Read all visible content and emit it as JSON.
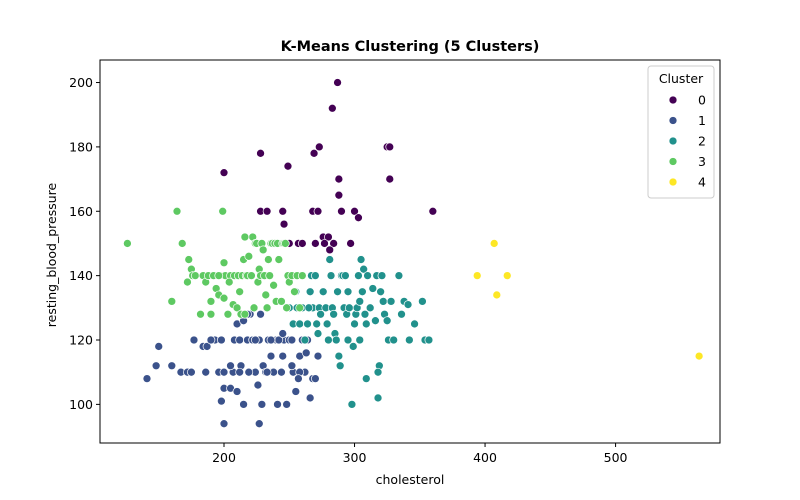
{
  "chart_data": {
    "type": "scatter",
    "title": "K-Means Clustering (5 Clusters)",
    "xlabel": "cholesterol",
    "ylabel": "resting_blood_pressure",
    "xlim": [
      105,
      580
    ],
    "ylim": [
      88,
      207
    ],
    "x_ticks": [
      200,
      300,
      400,
      500
    ],
    "y_ticks": [
      100,
      120,
      140,
      160,
      180,
      200
    ],
    "grid": false,
    "legend": {
      "title": "Cluster",
      "placement": "top-right"
    },
    "series": [
      {
        "name": "0",
        "color": "#440154",
        "points": [
          [
            287,
            200
          ],
          [
            283,
            192
          ],
          [
            325,
            180
          ],
          [
            327,
            180
          ],
          [
            273,
            180
          ],
          [
            228,
            178
          ],
          [
            269,
            178
          ],
          [
            249,
            174
          ],
          [
            200,
            172
          ],
          [
            327,
            170
          ],
          [
            288,
            170
          ],
          [
            288,
            165
          ],
          [
            290,
            160
          ],
          [
            228,
            160
          ],
          [
            233,
            160
          ],
          [
            245,
            160
          ],
          [
            268,
            160
          ],
          [
            272,
            160
          ],
          [
            300,
            160
          ],
          [
            303,
            158
          ],
          [
            360,
            160
          ],
          [
            246,
            156
          ],
          [
            276,
            152
          ],
          [
            280,
            152
          ],
          [
            257,
            150
          ],
          [
            270,
            150
          ],
          [
            277,
            150
          ],
          [
            284,
            150
          ],
          [
            297,
            150
          ],
          [
            250,
            150
          ],
          [
            281,
            148
          ],
          [
            260,
            150
          ]
        ]
      },
      {
        "name": "1",
        "color": "#3b528b",
        "points": [
          [
            141,
            108
          ],
          [
            148,
            112
          ],
          [
            150,
            118
          ],
          [
            160,
            112
          ],
          [
            167,
            110
          ],
          [
            172,
            110
          ],
          [
            175,
            110
          ],
          [
            177,
            120
          ],
          [
            184,
            118
          ],
          [
            187,
            118
          ],
          [
            193,
            120
          ],
          [
            198,
            120
          ],
          [
            196,
            110
          ],
          [
            200,
            110
          ],
          [
            198,
            101
          ],
          [
            200,
            105
          ],
          [
            200,
            94
          ],
          [
            205,
            105
          ],
          [
            207,
            110
          ],
          [
            210,
            104
          ],
          [
            208,
            120
          ],
          [
            210,
            125
          ],
          [
            212,
            120
          ],
          [
            213,
            112
          ],
          [
            215,
            126
          ],
          [
            218,
            120
          ],
          [
            220,
            128
          ],
          [
            222,
            120
          ],
          [
            224,
            110
          ],
          [
            226,
            106
          ],
          [
            227,
            120
          ],
          [
            230,
            112
          ],
          [
            227,
            94
          ],
          [
            229,
            100
          ],
          [
            232,
            110
          ],
          [
            234,
            120
          ],
          [
            236,
            115
          ],
          [
            237,
            110
          ],
          [
            240,
            120
          ],
          [
            241,
            100
          ],
          [
            244,
            110
          ],
          [
            245,
            115
          ],
          [
            246,
            120
          ],
          [
            248,
            100
          ],
          [
            250,
            120
          ],
          [
            253,
            110
          ],
          [
            255,
            104
          ],
          [
            258,
            115
          ],
          [
            260,
            120
          ],
          [
            262,
            110
          ],
          [
            264,
            120
          ],
          [
            266,
            102
          ],
          [
            268,
            108
          ],
          [
            270,
            108
          ],
          [
            272,
            115
          ],
          [
            218,
            128
          ],
          [
            205,
            112
          ],
          [
            186,
            110
          ],
          [
            215,
            100
          ],
          [
            238,
            110
          ],
          [
            252,
            120
          ],
          [
            242,
            120
          ],
          [
            222,
            120
          ],
          [
            233,
            110
          ],
          [
            263,
            116
          ],
          [
            219,
            110
          ],
          [
            236,
            120
          ],
          [
            224,
            120
          ],
          [
            258,
            110
          ],
          [
            190,
            120
          ],
          [
            228,
            128
          ],
          [
            212,
            110
          ],
          [
            245,
            122
          ],
          [
            252,
            112
          ],
          [
            257,
            108
          ]
        ]
      },
      {
        "name": "2",
        "color": "#21918c",
        "points": [
          [
            250,
            130
          ],
          [
            253,
            125
          ],
          [
            255,
            135
          ],
          [
            256,
            130
          ],
          [
            258,
            125
          ],
          [
            260,
            130
          ],
          [
            262,
            120
          ],
          [
            264,
            125
          ],
          [
            265,
            130
          ],
          [
            266,
            135
          ],
          [
            267,
            140
          ],
          [
            268,
            130
          ],
          [
            270,
            140
          ],
          [
            271,
            125
          ],
          [
            273,
            130
          ],
          [
            274,
            128
          ],
          [
            276,
            135
          ],
          [
            278,
            130
          ],
          [
            279,
            125
          ],
          [
            280,
            120
          ],
          [
            281,
            145
          ],
          [
            282,
            140
          ],
          [
            283,
            130
          ],
          [
            284,
            128
          ],
          [
            285,
            122
          ],
          [
            286,
            120
          ],
          [
            287,
            135
          ],
          [
            289,
            112
          ],
          [
            290,
            140
          ],
          [
            291,
            140
          ],
          [
            292,
            130
          ],
          [
            293,
            140
          ],
          [
            294,
            128
          ],
          [
            295,
            120
          ],
          [
            296,
            130
          ],
          [
            298,
            100
          ],
          [
            299,
            118
          ],
          [
            300,
            125
          ],
          [
            301,
            128
          ],
          [
            302,
            130
          ],
          [
            303,
            140
          ],
          [
            304,
            120
          ],
          [
            305,
            145
          ],
          [
            306,
            135
          ],
          [
            307,
            142
          ],
          [
            308,
            128
          ],
          [
            309,
            108
          ],
          [
            310,
            140
          ],
          [
            312,
            130
          ],
          [
            314,
            136
          ],
          [
            316,
            126
          ],
          [
            317,
            140
          ],
          [
            318,
            102
          ],
          [
            320,
            135
          ],
          [
            321,
            140
          ],
          [
            322,
            132
          ],
          [
            323,
            128
          ],
          [
            325,
            126
          ],
          [
            326,
            120
          ],
          [
            328,
            132
          ],
          [
            330,
            120
          ],
          [
            334,
            140
          ],
          [
            338,
            132
          ],
          [
            342,
            120
          ],
          [
            346,
            125
          ],
          [
            352,
            132
          ],
          [
            354,
            120
          ],
          [
            357,
            120
          ],
          [
            341,
            131
          ],
          [
            319,
            112
          ],
          [
            336,
            128
          ],
          [
            309,
            125
          ],
          [
            318,
            110
          ],
          [
            260,
            140
          ],
          [
            265,
            130
          ],
          [
            272,
            122
          ],
          [
            288,
            115
          ],
          [
            295,
            135
          ],
          [
            304,
            132
          ]
        ]
      },
      {
        "name": "3",
        "color": "#5ec962",
        "points": [
          [
            126,
            150
          ],
          [
            164,
            160
          ],
          [
            168,
            150
          ],
          [
            173,
            145
          ],
          [
            175,
            142
          ],
          [
            176,
            140
          ],
          [
            178,
            140
          ],
          [
            182,
            128
          ],
          [
            184,
            140
          ],
          [
            186,
            138
          ],
          [
            188,
            140
          ],
          [
            190,
            128
          ],
          [
            192,
            140
          ],
          [
            194,
            136
          ],
          [
            196,
            134
          ],
          [
            197,
            140
          ],
          [
            199,
            160
          ],
          [
            200,
            133
          ],
          [
            200,
            144
          ],
          [
            201,
            140
          ],
          [
            203,
            128
          ],
          [
            205,
            140
          ],
          [
            207,
            131
          ],
          [
            208,
            140
          ],
          [
            210,
            130
          ],
          [
            211,
            140
          ],
          [
            212,
            135
          ],
          [
            213,
            128
          ],
          [
            214,
            140
          ],
          [
            215,
            145
          ],
          [
            216,
            128
          ],
          [
            217,
            140
          ],
          [
            218,
            140
          ],
          [
            219,
            146
          ],
          [
            221,
            140
          ],
          [
            222,
            152
          ],
          [
            223,
            130
          ],
          [
            224,
            150
          ],
          [
            225,
            150
          ],
          [
            226,
            138
          ],
          [
            227,
            142
          ],
          [
            228,
            140
          ],
          [
            229,
            150
          ],
          [
            230,
            148
          ],
          [
            231,
            140
          ],
          [
            232,
            134
          ],
          [
            233,
            130
          ],
          [
            234,
            145
          ],
          [
            235,
            140
          ],
          [
            236,
            150
          ],
          [
            237,
            150
          ],
          [
            238,
            137
          ],
          [
            239,
            150
          ],
          [
            240,
            132
          ],
          [
            241,
            150
          ],
          [
            242,
            145
          ],
          [
            244,
            132
          ],
          [
            245,
            150
          ],
          [
            246,
            150
          ],
          [
            247,
            150
          ],
          [
            248,
            130
          ],
          [
            249,
            140
          ],
          [
            250,
            138
          ],
          [
            252,
            140
          ],
          [
            254,
            135
          ],
          [
            256,
            140
          ],
          [
            258,
            130
          ],
          [
            260,
            140
          ],
          [
            216,
            152
          ],
          [
            196,
            140
          ],
          [
            172,
            138
          ],
          [
            160,
            132
          ],
          [
            204,
            138
          ],
          [
            190,
            132
          ]
        ]
      },
      {
        "name": "4",
        "color": "#fde725",
        "points": [
          [
            394,
            140
          ],
          [
            407,
            150
          ],
          [
            409,
            134
          ],
          [
            417,
            140
          ],
          [
            564,
            115
          ]
        ]
      }
    ]
  }
}
